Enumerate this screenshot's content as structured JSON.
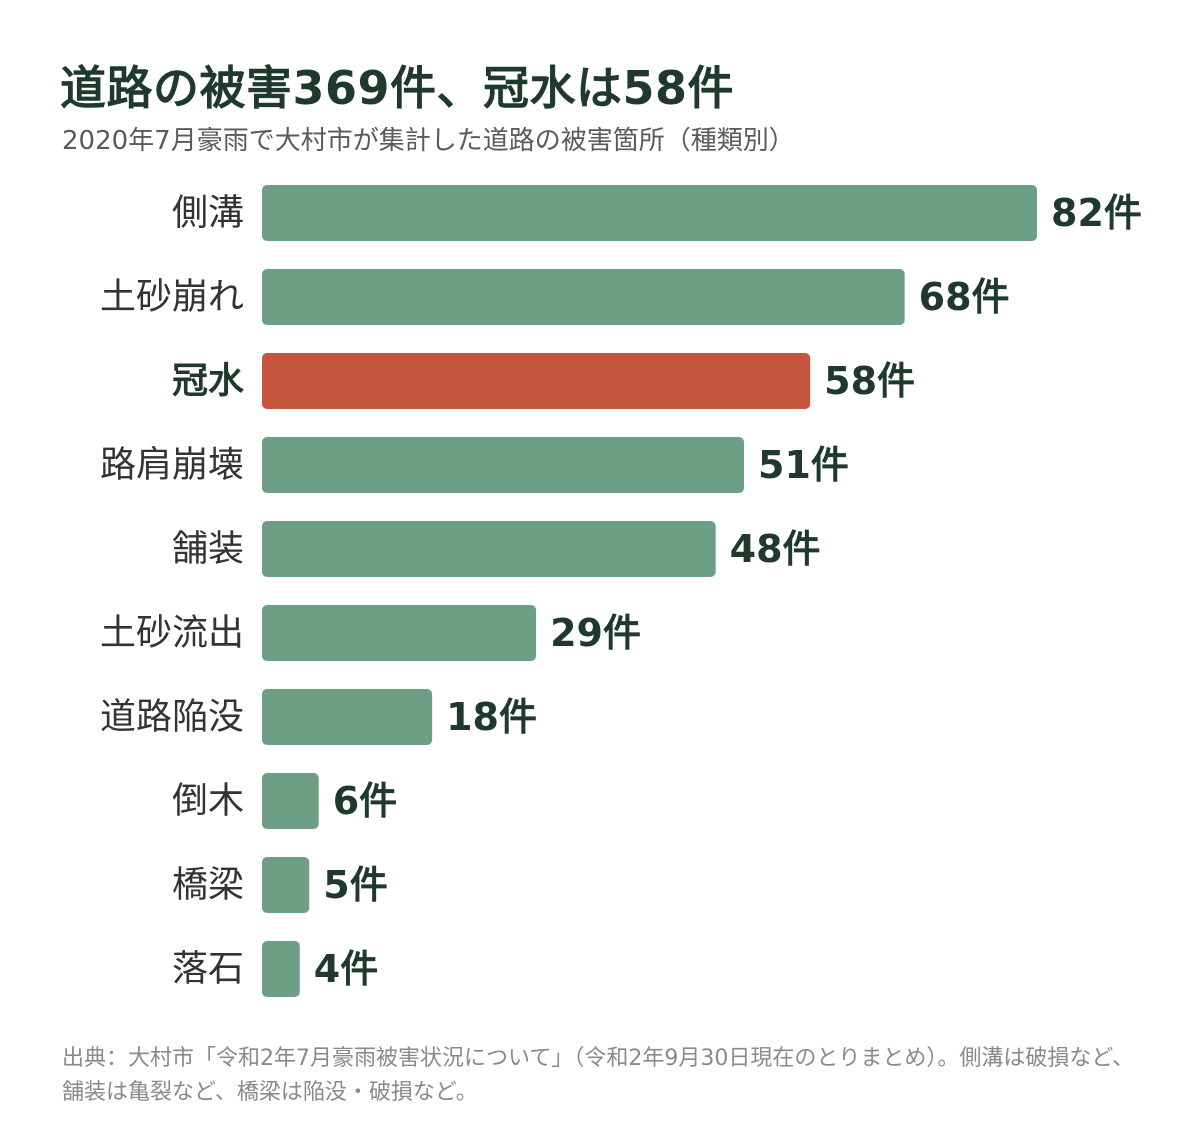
{
  "colors": {
    "bar_default": "#6d9f86",
    "bar_highlight": "#c5553d",
    "text_dark": "#1f3a2c",
    "text_muted": "#5a5a5a",
    "source_text": "#8a8a8a"
  },
  "chart_data": {
    "type": "bar",
    "orientation": "horizontal",
    "title": "道路の被害369件、冠水は58件",
    "subtitle": "2020年7月豪雨で大村市が集計した道路の被害箇所（種類別）",
    "categories": [
      "側溝",
      "土砂崩れ",
      "冠水",
      "路肩崩壊",
      "舗装",
      "土砂流出",
      "道路陥没",
      "倒木",
      "橋梁",
      "落石"
    ],
    "values": [
      82,
      68,
      58,
      51,
      48,
      29,
      18,
      6,
      5,
      4
    ],
    "value_labels": [
      "82件",
      "68件",
      "58件",
      "51件",
      "48件",
      "29件",
      "18件",
      "6件",
      "5件",
      "4件"
    ],
    "highlight": "冠水",
    "xlim": [
      0,
      82
    ],
    "grid": false,
    "legend": "none"
  },
  "source": "出典：大村市「令和2年7月豪雨被害状況について」（令和2年9月30日現在のとりまとめ）。側溝は破損など、舗装は亀裂など、橋梁は陥没・破損など。"
}
